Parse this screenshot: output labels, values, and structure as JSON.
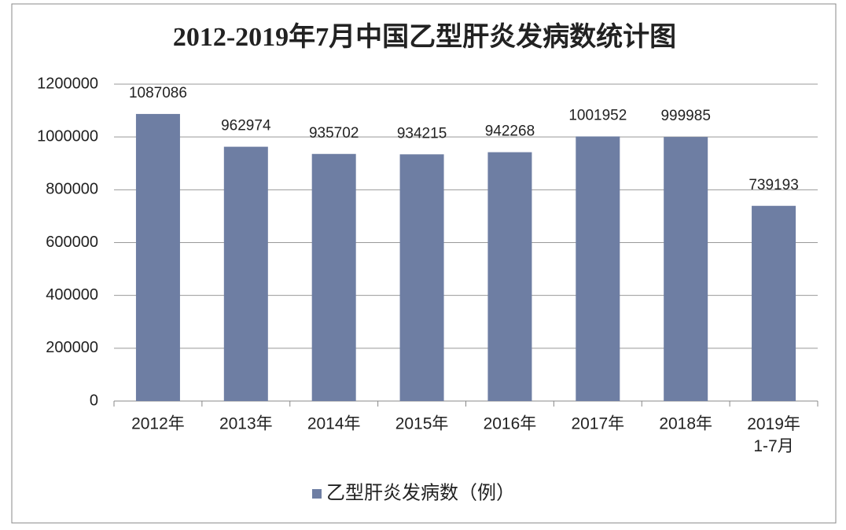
{
  "chart_data": {
    "type": "bar",
    "title": "2012-2019年7月中国乙型肝炎发病数统计图",
    "categories": [
      "2012年",
      "2013年",
      "2014年",
      "2015年",
      "2016年",
      "2017年",
      "2018年",
      "2019年\n1-7月"
    ],
    "series": [
      {
        "name": "乙型肝炎发病数（例）",
        "color": "#6e7ea3",
        "values": [
          1087086,
          962974,
          935702,
          934215,
          942268,
          1001952,
          999985,
          739193
        ]
      }
    ],
    "ylim": [
      0,
      1200000
    ],
    "yticks": [
      0,
      200000,
      400000,
      600000,
      800000,
      1000000,
      1200000
    ],
    "grid": true
  }
}
